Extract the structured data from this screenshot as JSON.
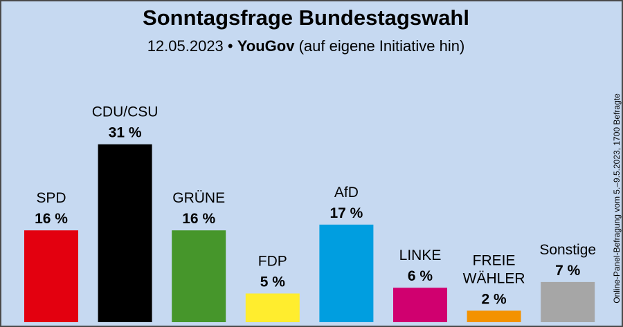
{
  "header": {
    "title": "Sonntagsfrage Bundestagswahl",
    "date": "12.05.2023",
    "separator": "•",
    "pollster": "YouGov",
    "note": "(auf eigene Initiative hin)"
  },
  "side_note": "Online-Panel-Befragung vom 5.–9.5.2023, 1700 Befragte",
  "chart_data": {
    "type": "bar",
    "title": "Sonntagsfrage Bundestagswahl",
    "subtitle": "12.05.2023 • YouGov (auf eigene Initiative hin)",
    "categories": [
      "SPD",
      "CDU/CSU",
      "GRÜNE",
      "FDP",
      "AfD",
      "LINKE",
      "FREIE WÄHLER",
      "Sonstige"
    ],
    "category_lines": [
      [
        "SPD"
      ],
      [
        "CDU/CSU"
      ],
      [
        "GRÜNE"
      ],
      [
        "FDP"
      ],
      [
        "AfD"
      ],
      [
        "LINKE"
      ],
      [
        "FREIE",
        "WÄHLER"
      ],
      [
        "Sonstige"
      ]
    ],
    "values": [
      16,
      31,
      16,
      5,
      17,
      6,
      2,
      7
    ],
    "value_labels": [
      "16 %",
      "31 %",
      "16 %",
      "5 %",
      "17 %",
      "6 %",
      "2 %",
      "7 %"
    ],
    "colors": [
      "#e3000f",
      "#000000",
      "#46962b",
      "#ffed2e",
      "#009ee0",
      "#d0006f",
      "#f39200",
      "#a6a6a6"
    ],
    "unit": "%",
    "ylim": [
      0,
      31
    ],
    "grid": false,
    "legend": "none"
  }
}
